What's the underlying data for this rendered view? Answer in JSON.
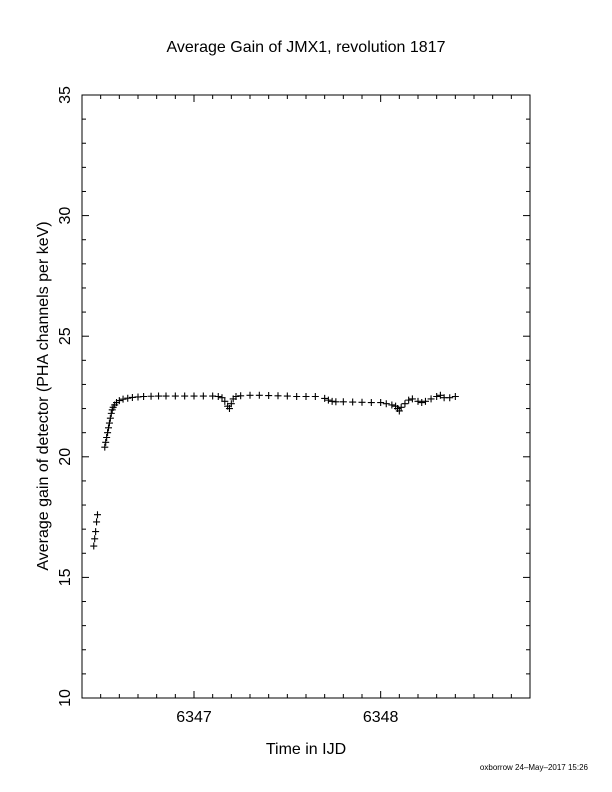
{
  "chart_data": {
    "type": "scatter",
    "title": "Average Gain of JMX1, revolution 1817",
    "xlabel": "Time in IJD",
    "ylabel": "Average gain of detector (PHA channels per keV)",
    "xlim": [
      6346.4,
      6348.8
    ],
    "ylim": [
      10,
      35
    ],
    "x_ticks": [
      6347,
      6348
    ],
    "x_tick_labels": [
      "6347",
      "6348"
    ],
    "y_ticks": [
      10,
      15,
      20,
      25,
      30,
      35
    ],
    "y_tick_labels": [
      "10",
      "15",
      "20",
      "25",
      "30",
      "35"
    ],
    "grid": false,
    "marker": "plus",
    "series": [
      {
        "x": [
          6346.463,
          6346.468,
          6346.473,
          6346.478,
          6346.483,
          6346.522,
          6346.527,
          6346.532,
          6346.537,
          6346.542,
          6346.547,
          6346.552,
          6346.557,
          6346.562,
          6346.567,
          6346.575,
          6346.585,
          6346.6,
          6346.62,
          6346.645,
          6346.67,
          6346.7,
          6346.73,
          6346.77,
          6346.81,
          6346.85,
          6346.9,
          6346.95,
          6347.0,
          6347.05,
          6347.1,
          6347.13,
          6347.15,
          6347.165,
          6347.18,
          6347.19,
          6347.2,
          6347.21,
          6347.225,
          6347.25,
          6347.3,
          6347.35,
          6347.4,
          6347.45,
          6347.5,
          6347.55,
          6347.6,
          6347.65,
          6347.7,
          6347.72,
          6347.74,
          6347.76,
          6347.8,
          6347.85,
          6347.9,
          6347.95,
          6348.0,
          6348.03,
          6348.06,
          6348.08,
          6348.09,
          6348.1,
          6348.11,
          6348.13,
          6348.15,
          6348.17,
          6348.2,
          6348.22,
          6348.24,
          6348.27,
          6348.3,
          6348.32,
          6348.34,
          6348.37,
          6348.4
        ],
        "y": [
          16.3,
          16.6,
          16.9,
          17.3,
          17.6,
          20.4,
          20.6,
          20.8,
          21.0,
          21.2,
          21.4,
          21.6,
          21.8,
          21.95,
          22.05,
          22.15,
          22.25,
          22.33,
          22.39,
          22.43,
          22.46,
          22.48,
          22.5,
          22.51,
          22.52,
          22.52,
          22.52,
          22.52,
          22.52,
          22.52,
          22.52,
          22.5,
          22.45,
          22.3,
          22.1,
          22.0,
          22.2,
          22.4,
          22.5,
          22.53,
          22.55,
          22.55,
          22.54,
          22.53,
          22.52,
          22.5,
          22.5,
          22.5,
          22.42,
          22.35,
          22.3,
          22.28,
          22.28,
          22.27,
          22.26,
          22.25,
          22.25,
          22.2,
          22.15,
          22.1,
          22.0,
          21.9,
          22.05,
          22.2,
          22.35,
          22.4,
          22.3,
          22.25,
          22.3,
          22.4,
          22.5,
          22.55,
          22.45,
          22.45,
          22.5
        ]
      }
    ]
  },
  "footer": {
    "credit": "oxborrow 24–May–2017 15:26"
  }
}
